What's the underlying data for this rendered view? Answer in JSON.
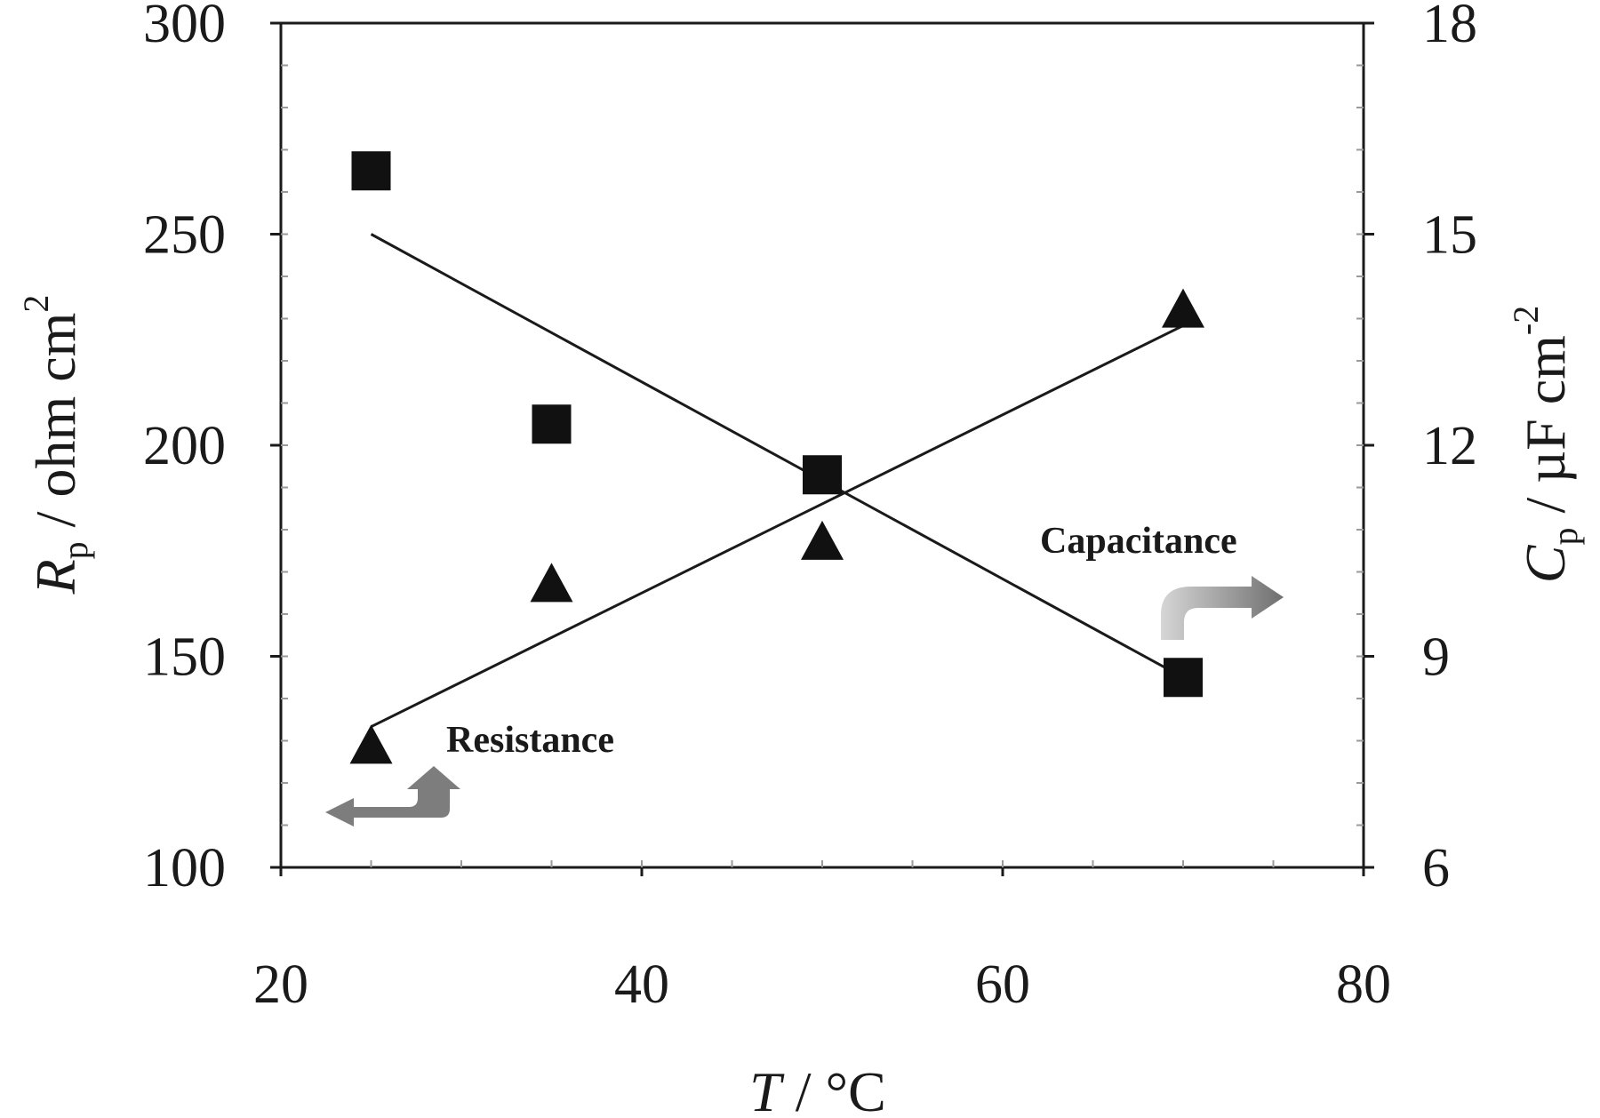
{
  "chart_data": {
    "type": "scatter",
    "x": [
      25,
      35,
      50,
      70
    ],
    "xlabel": {
      "symbol": "T",
      "unit": " / °C"
    },
    "xlim": [
      20,
      80
    ],
    "xticks": [
      "20",
      "40",
      "60",
      "80"
    ],
    "y_left": {
      "label": {
        "symbol": "R",
        "sub": "p",
        "text": " / ohm cm",
        "sup": "2"
      },
      "lim": [
        100,
        300
      ],
      "ticks": [
        "100",
        "150",
        "200",
        "250",
        "300"
      ]
    },
    "y_right": {
      "label": {
        "symbol": "C",
        "sub": "p",
        "text": " / µF cm",
        "sup": "-2"
      },
      "lim": [
        6,
        18
      ],
      "ticks": [
        "6",
        "9",
        "12",
        "15",
        "18"
      ]
    },
    "series": [
      {
        "name": "Resistance",
        "axis": "left",
        "marker": "square",
        "values": [
          265,
          205,
          193,
          145
        ],
        "fit": {
          "x": [
            25,
            70
          ],
          "y": [
            250,
            145
          ]
        }
      },
      {
        "name": "Capacitance",
        "axis": "right",
        "marker": "triangle",
        "values": [
          7.7,
          10.0,
          10.6,
          13.9
        ],
        "fit": {
          "x": [
            25,
            70
          ],
          "y": [
            8.0,
            13.7
          ]
        }
      }
    ],
    "annotations": [
      {
        "text": "Resistance",
        "arrow": "left"
      },
      {
        "text": "Capacitance",
        "arrow": "right"
      }
    ],
    "grid": false
  }
}
